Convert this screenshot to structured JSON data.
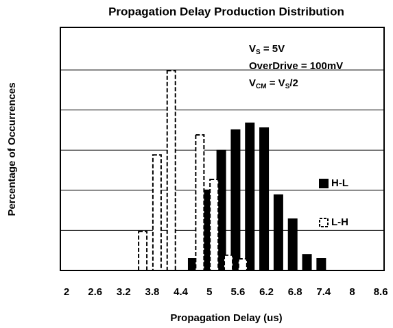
{
  "chart_data": {
    "type": "bar",
    "title": "Propagation Delay Production Distribution",
    "xlabel": "Propagation Delay (us)",
    "ylabel": "Percentage of Occurrences",
    "annotations": [
      [
        "V",
        "S",
        " = 5V"
      ],
      [
        "OverDrive = 100mV"
      ],
      [
        "V",
        "CM",
        " = V",
        "S",
        "/2"
      ]
    ],
    "xlim": [
      1.87,
      8.67
    ],
    "xticks": [
      2,
      2.6,
      3.2,
      3.8,
      4.4,
      5,
      5.6,
      6.2,
      6.8,
      7.4,
      8,
      8.6
    ],
    "ylim": [
      0,
      6.06
    ],
    "yticks": [
      1,
      2,
      3,
      4,
      5
    ],
    "grid": true,
    "series": [
      {
        "name": "H-L",
        "color": "#000000",
        "style": "solid",
        "x": [
          4.65,
          4.95,
          5.25,
          5.55,
          5.85,
          6.15,
          6.45,
          6.75,
          7.05,
          7.35
        ],
        "values": [
          0.29,
          2.0,
          2.99,
          3.5,
          3.67,
          3.55,
          1.88,
          1.28,
          0.39,
          0.29
        ]
      },
      {
        "name": "L-H",
        "color": "#000000",
        "style": "dashed",
        "x": [
          3.6,
          3.9,
          4.2,
          4.8,
          5.1,
          5.4,
          5.7
        ],
        "values": [
          0.97,
          2.88,
          4.98,
          3.38,
          2.27,
          0.38,
          0.29
        ]
      }
    ]
  }
}
